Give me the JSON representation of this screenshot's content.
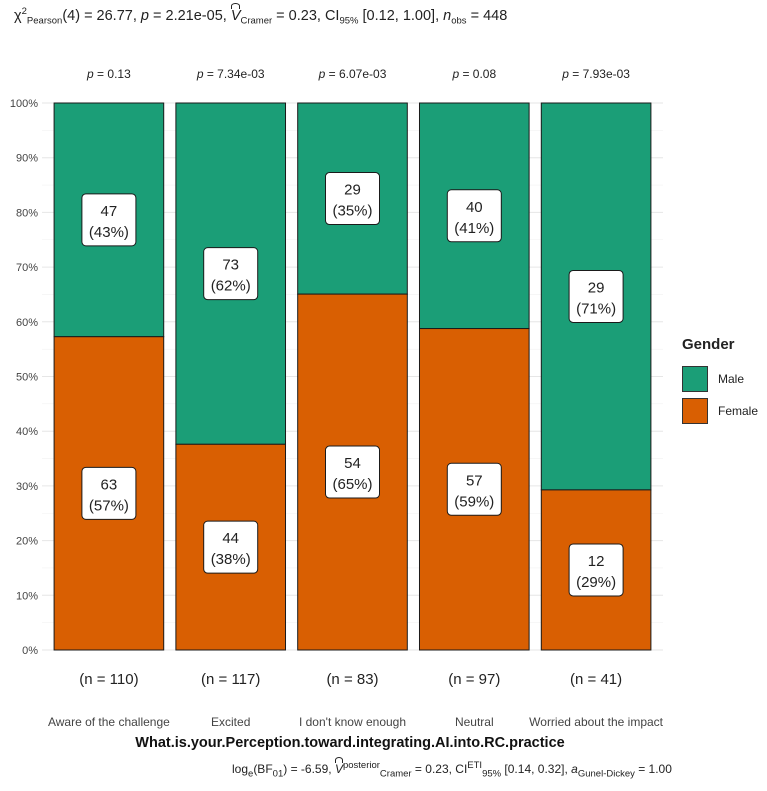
{
  "chart_data": {
    "type": "bar",
    "stacked": "percent",
    "categories": [
      "Aware of the challenge",
      "Excited",
      "I don't know enough",
      "Neutral",
      "Worried about the impact"
    ],
    "series": [
      {
        "name": "Male",
        "color": "#1b9e77",
        "counts": [
          47,
          73,
          29,
          40,
          29
        ],
        "percent_labels": [
          "(43%)",
          "(62%)",
          "(35%)",
          "(41%)",
          "(71%)"
        ],
        "values": [
          43,
          62,
          35,
          41,
          71
        ]
      },
      {
        "name": "Female",
        "color": "#d95f02",
        "counts": [
          63,
          44,
          54,
          57,
          12
        ],
        "percent_labels": [
          "(57%)",
          "(38%)",
          "(65%)",
          "(59%)",
          "(29%)"
        ],
        "values": [
          57,
          38,
          65,
          59,
          29
        ]
      }
    ],
    "totals": [
      "(n = 110)",
      "(n = 117)",
      "(n = 83)",
      "(n = 97)",
      "(n = 41)"
    ],
    "p_values": [
      "0.13",
      "7.34e-03",
      "6.07e-03",
      "0.08",
      "7.93e-03"
    ],
    "ylim": [
      0,
      100
    ],
    "yticks": [
      0,
      10,
      20,
      30,
      40,
      50,
      60,
      70,
      80,
      90,
      100
    ],
    "ytick_labels": [
      "0%",
      "10%",
      "20%",
      "30%",
      "40%",
      "50%",
      "60%",
      "70%",
      "80%",
      "90%",
      "100%"
    ],
    "xlabel": "What.is.your.Perception.toward.integrating.AI.into.RC.practice",
    "ylabel": "",
    "legend_title": "Gender",
    "legend_order": [
      "Male",
      "Female"
    ],
    "legend_position": "right",
    "subtitle": {
      "chi": "χ",
      "chi_sup": "2",
      "chi_sub": "Pearson",
      "df": "(4) = 26.77, ",
      "p_label": "p",
      "p_value": " = 2.21e-05, ",
      "v": "V",
      "v_sub": "Cramer",
      "v_value": " = 0.23, CI",
      "ci_sub": "95%",
      "ci_value": " [0.12, 1.00], ",
      "n_label": "n",
      "n_sub": "obs",
      "n_value": " = 448"
    },
    "caption": {
      "log": "log",
      "log_sub": "e",
      "bf": "(BF",
      "bf_sub": "01",
      "bf_value": ") = -6.59, ",
      "v": "V",
      "v_sup": "posterior",
      "v_sub": "Cramer",
      "v_value": " = 0.23, CI",
      "ci_sup": "ETI",
      "ci_sub": "95%",
      "ci_value": " [0.14, 0.32], ",
      "a": "a",
      "a_sub": "Gunel-Dickey",
      "a_value": " = 1.00"
    }
  }
}
